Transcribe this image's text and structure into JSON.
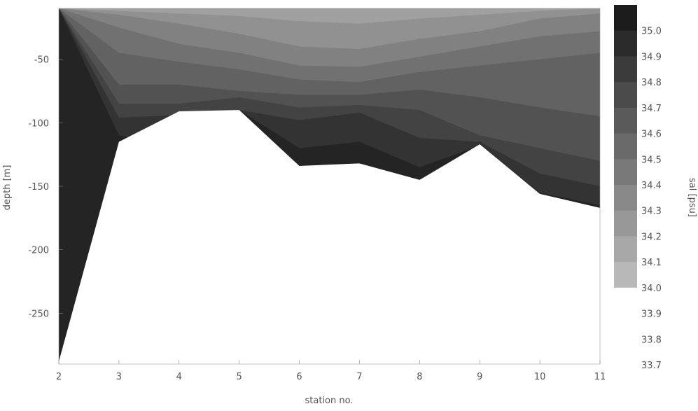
{
  "chart_data": {
    "type": "heatmap",
    "title": "",
    "xlabel": "station no.",
    "ylabel": "depth [m]",
    "colorbar_label": "sal [psu]",
    "xlim": [
      2,
      11
    ],
    "ylim": [
      -290,
      -10
    ],
    "x_ticks": [
      "2",
      "3",
      "4",
      "5",
      "6",
      "7",
      "8",
      "9",
      "10",
      "11"
    ],
    "y_ticks": [
      "-50",
      "-100",
      "-150",
      "-200",
      "-250"
    ],
    "colorbar_ticks": [
      "35.0",
      "34.9",
      "34.8",
      "34.7",
      "34.6",
      "34.5",
      "34.4",
      "34.3",
      "34.2",
      "34.1",
      "34.0",
      "33.9",
      "33.8",
      "33.7"
    ],
    "colorbar_range": [
      33.7,
      35.1
    ],
    "colormap": "grayscale (dark = high salinity)",
    "stations": [
      2,
      3,
      4,
      5,
      6,
      7,
      8,
      9,
      10,
      11
    ],
    "bottom_depth": [
      {
        "station": 2,
        "depth": -288
      },
      {
        "station": 3,
        "depth": -115
      },
      {
        "station": 4,
        "depth": -91
      },
      {
        "station": 5,
        "depth": -90
      },
      {
        "station": 6,
        "depth": -134
      },
      {
        "station": 7,
        "depth": -132
      },
      {
        "station": 8,
        "depth": -145
      },
      {
        "station": 9,
        "depth": -117
      },
      {
        "station": 10,
        "depth": -156
      },
      {
        "station": 11,
        "depth": -167
      }
    ],
    "salinity_layers": [
      {
        "level": 34.2,
        "depths": [
          -10,
          -10,
          -10,
          -10,
          -10,
          -10,
          -10,
          -10,
          -10,
          -10
        ]
      },
      {
        "level": 34.3,
        "depths": [
          -10,
          -12,
          -14,
          -16,
          -20,
          -22,
          -18,
          -15,
          -12,
          -10
        ]
      },
      {
        "level": 34.4,
        "depths": [
          -10,
          -15,
          -22,
          -30,
          -40,
          -42,
          -34,
          -28,
          -18,
          -14
        ]
      },
      {
        "level": 34.5,
        "depths": [
          -10,
          -25,
          -38,
          -45,
          -55,
          -56,
          -48,
          -40,
          -32,
          -28
        ]
      },
      {
        "level": 34.6,
        "depths": [
          -10,
          -45,
          -52,
          -58,
          -66,
          -68,
          -60,
          -55,
          -50,
          -45
        ]
      },
      {
        "level": 34.7,
        "depths": [
          -10,
          -70,
          -70,
          -75,
          -78,
          -78,
          -74,
          -80,
          -88,
          -95
        ]
      },
      {
        "level": 34.8,
        "depths": [
          -10,
          -85,
          -85,
          -80,
          -88,
          -86,
          -90,
          -110,
          -120,
          -130
        ]
      },
      {
        "level": 34.9,
        "depths": [
          -10,
          -96,
          -94,
          -90,
          -98,
          -92,
          -112,
          -115,
          -140,
          -150
        ]
      },
      {
        "level": 35.0,
        "depths": [
          -10,
          -110,
          -120,
          -90,
          -120,
          -115,
          -135,
          -118,
          -155,
          -165
        ]
      }
    ]
  }
}
